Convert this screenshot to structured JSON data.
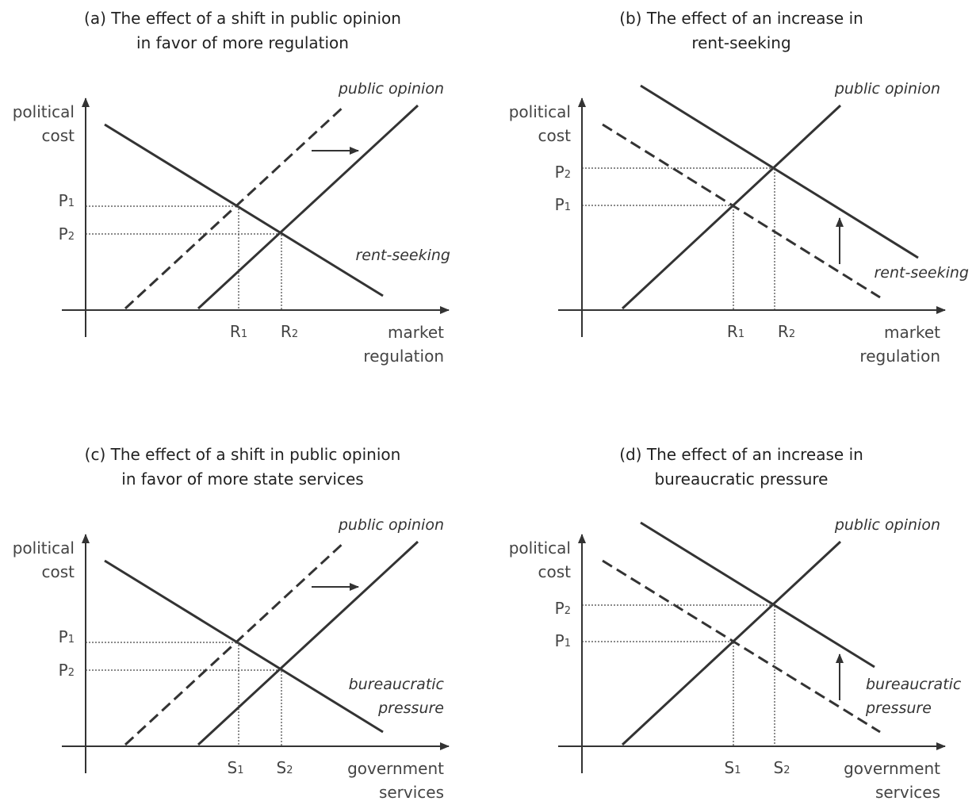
{
  "panels": [
    {
      "id": "a",
      "title_line1": "(a) The effect of a shift in public opinion",
      "title_line2": "in favor of more regulation",
      "y_label_line1": "political",
      "y_label_line2": "cost",
      "x_label_line1": "market",
      "x_label_line2": "regulation",
      "supply_label": "public opinion",
      "demand_label_line1": "rent-seeking",
      "demand_label_line2": "",
      "p_upper": "P",
      "p_upper_sub": "1",
      "p_lower": "P",
      "p_lower_sub": "2",
      "x_first": "R",
      "x_first_sub": "1",
      "x_second": "R",
      "x_second_sub": "2",
      "shift": "public opinion curve shifts right"
    },
    {
      "id": "b",
      "title_line1": "(b) The effect of an increase in",
      "title_line2": "rent-seeking",
      "y_label_line1": "political",
      "y_label_line2": "cost",
      "x_label_line1": "market",
      "x_label_line2": "regulation",
      "supply_label": "public opinion",
      "demand_label_line1": "rent-seeking",
      "demand_label_line2": "",
      "p_upper": "P",
      "p_upper_sub": "2",
      "p_lower": "P",
      "p_lower_sub": "1",
      "x_first": "R",
      "x_first_sub": "1",
      "x_second": "R",
      "x_second_sub": "2",
      "shift": "rent-seeking curve shifts up"
    },
    {
      "id": "c",
      "title_line1": "(c) The effect of a shift in public opinion",
      "title_line2": "in favor of more state services",
      "y_label_line1": "political",
      "y_label_line2": "cost",
      "x_label_line1": "government",
      "x_label_line2": "services",
      "supply_label": "public opinion",
      "demand_label_line1": "bureaucratic",
      "demand_label_line2": "pressure",
      "p_upper": "P",
      "p_upper_sub": "1",
      "p_lower": "P",
      "p_lower_sub": "2",
      "x_first": "S",
      "x_first_sub": "1",
      "x_second": "S",
      "x_second_sub": "2",
      "shift": "public opinion curve shifts right"
    },
    {
      "id": "d",
      "title_line1": "(d) The effect of an increase in",
      "title_line2": "bureaucratic pressure",
      "y_label_line1": "political",
      "y_label_line2": "cost",
      "x_label_line1": "government",
      "x_label_line2": "services",
      "supply_label": "public opinion",
      "demand_label_line1": "bureaucratic",
      "demand_label_line2": "pressure",
      "p_upper": "P",
      "p_upper_sub": "2",
      "p_lower": "P",
      "p_lower_sub": "1",
      "x_first": "S",
      "x_first_sub": "1",
      "x_second": "S",
      "x_second_sub": "2",
      "shift": "bureaucratic pressure curve shifts up"
    }
  ],
  "colors": {
    "line": "#333333",
    "text": "#444444",
    "dotted": "#444444"
  }
}
